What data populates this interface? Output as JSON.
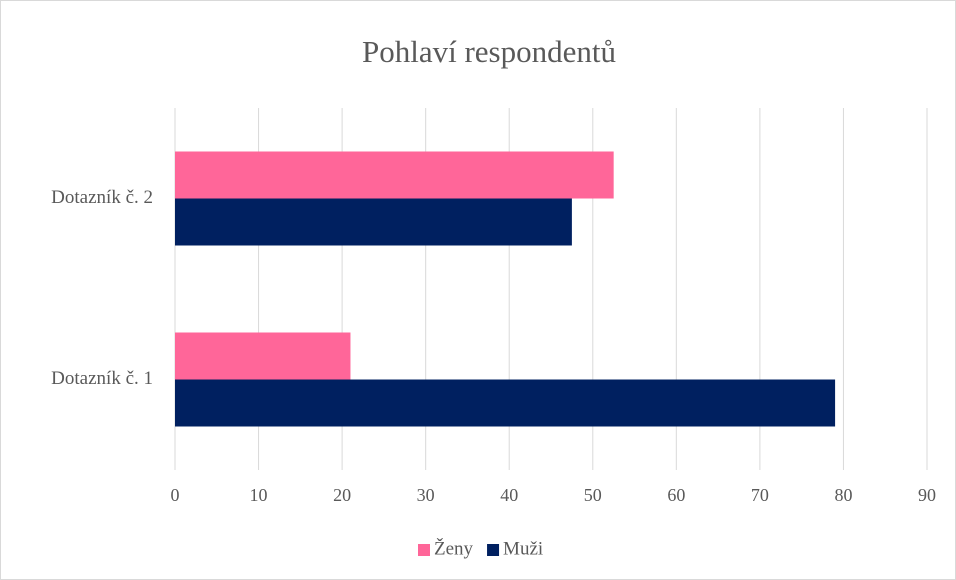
{
  "chart_data": {
    "type": "bar",
    "orientation": "horizontal",
    "title": "Pohlaví respondentů",
    "categories": [
      "Dotazník č. 1",
      "Dotazník č. 2"
    ],
    "series": [
      {
        "name": "Ženy",
        "color": "#ff6699",
        "values": [
          21,
          52.5
        ]
      },
      {
        "name": "Muži",
        "color": "#002060",
        "values": [
          79,
          47.5
        ]
      }
    ],
    "xlim": [
      0,
      90
    ],
    "xticks": [
      0,
      10,
      20,
      30,
      40,
      50,
      60,
      70,
      80,
      90
    ],
    "grid": true,
    "legend": "bottom"
  }
}
